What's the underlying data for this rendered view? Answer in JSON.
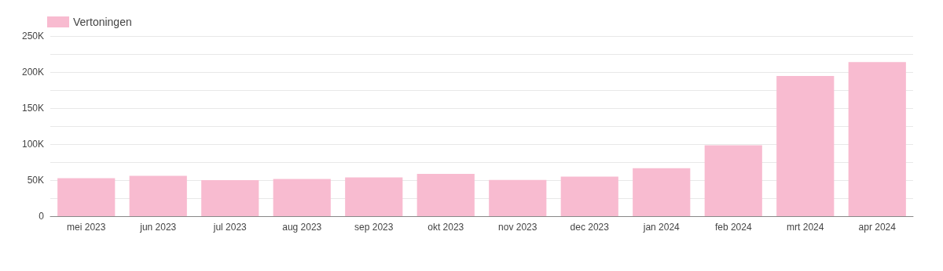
{
  "chart_data": {
    "type": "bar",
    "categories": [
      "mei 2023",
      "jun 2023",
      "jul 2023",
      "aug 2023",
      "sep 2023",
      "okt 2023",
      "nov 2023",
      "dec 2023",
      "jan 2024",
      "feb 2024",
      "mrt 2024",
      "apr 2024"
    ],
    "series": [
      {
        "name": "Vertoningen",
        "color": "#f8bbd0",
        "values": [
          52600,
          56000,
          50000,
          51700,
          53900,
          58600,
          50400,
          55000,
          66500,
          98300,
          194600,
          213800
        ]
      }
    ],
    "ylim": [
      0,
      250000
    ],
    "yticks": [
      {
        "value": 0,
        "label": "0"
      },
      {
        "value": 25000,
        "label": null
      },
      {
        "value": 50000,
        "label": "50K"
      },
      {
        "value": 75000,
        "label": null
      },
      {
        "value": 100000,
        "label": "100K"
      },
      {
        "value": 125000,
        "label": null
      },
      {
        "value": 150000,
        "label": "150K"
      },
      {
        "value": 175000,
        "label": null
      },
      {
        "value": 200000,
        "label": "200K"
      },
      {
        "value": 225000,
        "label": null
      },
      {
        "value": 250000,
        "label": "250K"
      }
    ],
    "grid": "y",
    "legend": "top left"
  }
}
